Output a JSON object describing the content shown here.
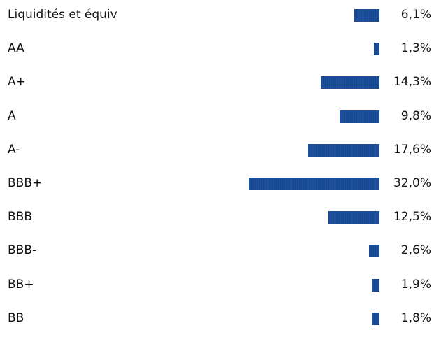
{
  "chart_data": {
    "type": "bar",
    "orientation": "horizontal",
    "title": "",
    "xlabel": "",
    "ylabel": "",
    "xlim": [
      0,
      32
    ],
    "grid": false,
    "legend": "none",
    "bar_color": "#1c4f9c",
    "categories": [
      "Liquidités et équiv",
      "AA",
      "A+",
      "A",
      "A-",
      "BBB+",
      "BBB",
      "BBB-",
      "BB+",
      "BB"
    ],
    "values": [
      6.1,
      1.3,
      14.3,
      9.8,
      17.6,
      32.0,
      12.5,
      2.6,
      1.9,
      1.8
    ],
    "value_labels": [
      "6,1%",
      "1,3%",
      "14,3%",
      "9,8%",
      "17,6%",
      "32,0%",
      "12,5%",
      "2,6%",
      "1,9%",
      "1,8%"
    ]
  }
}
